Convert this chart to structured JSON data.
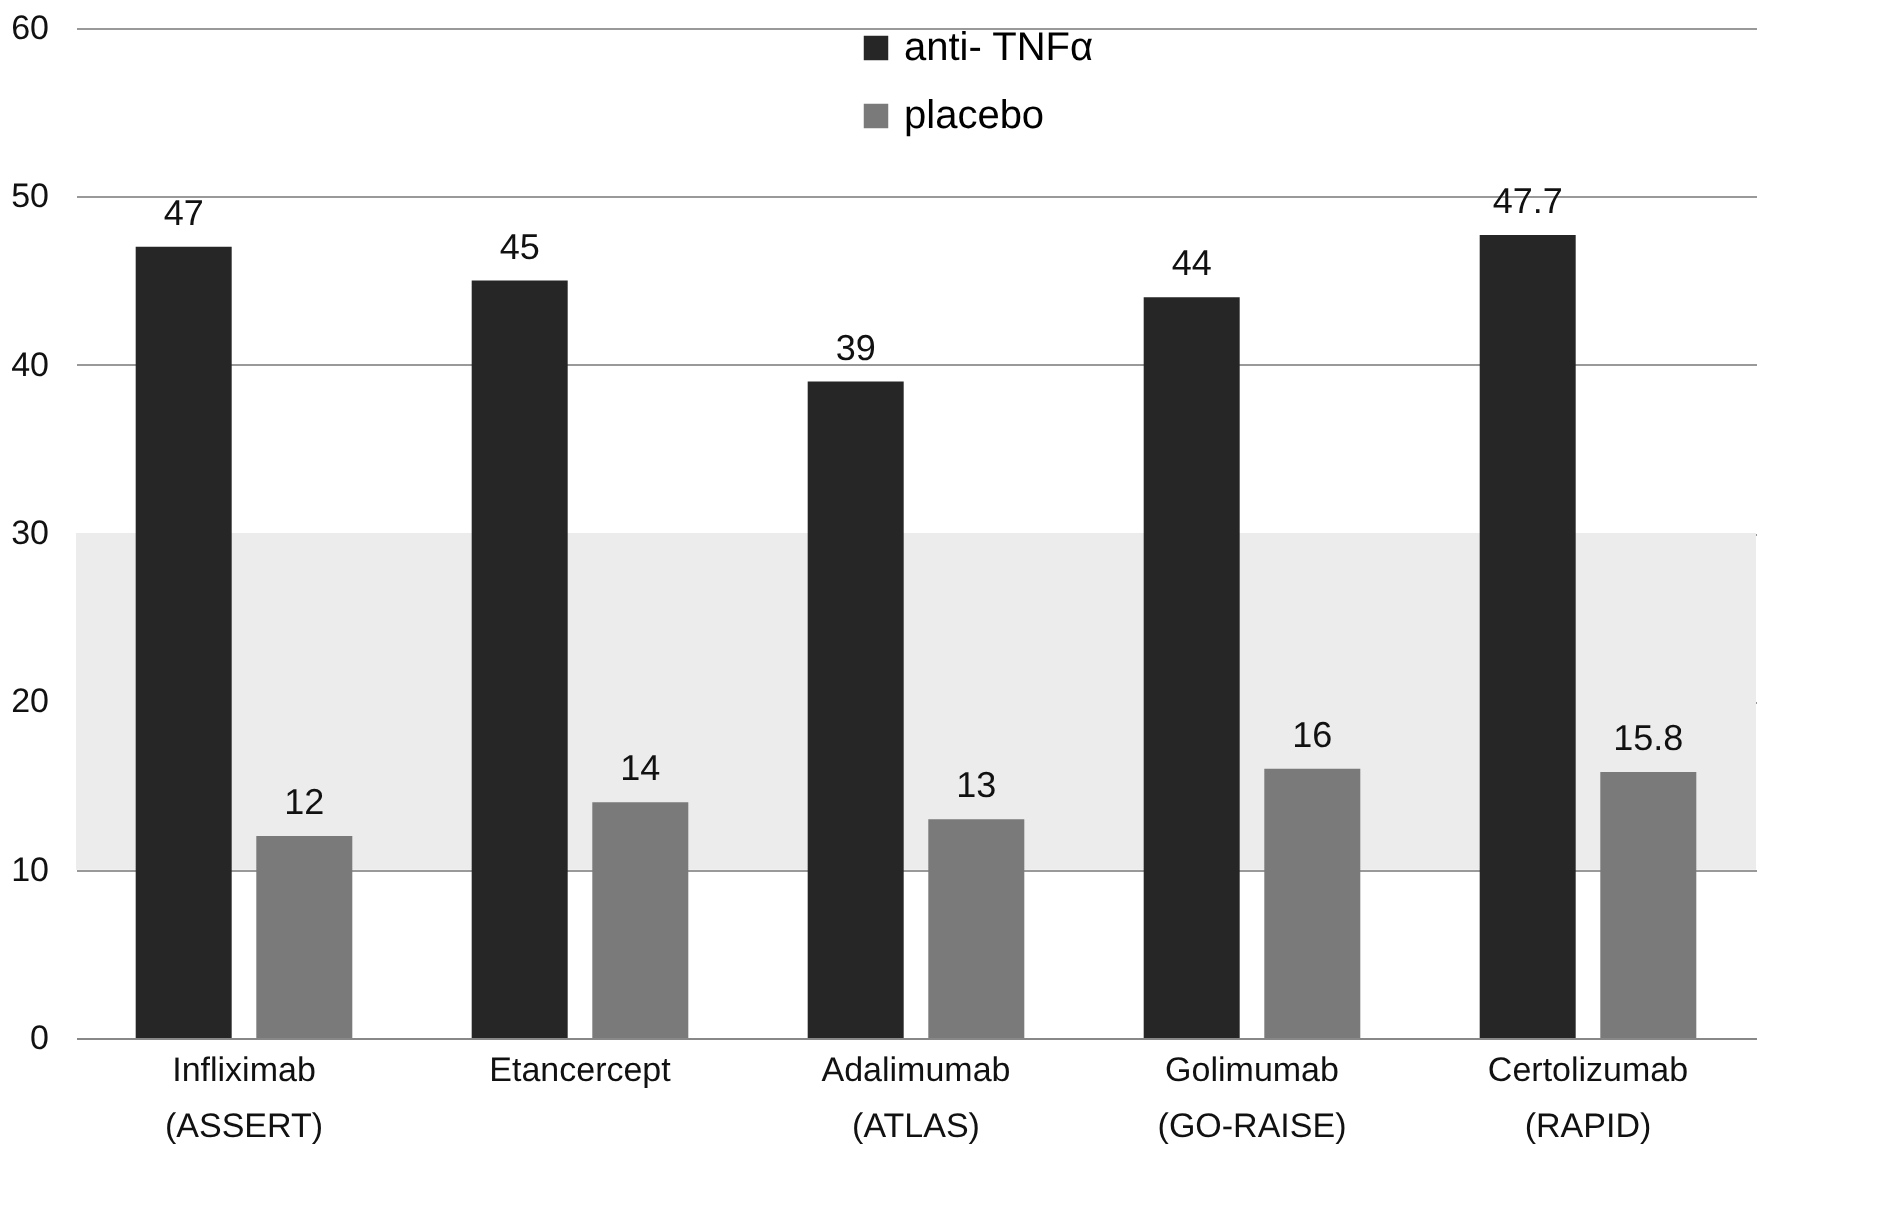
{
  "chart_data": {
    "type": "bar",
    "categories": [
      "Infliximab\n(ASSERT)",
      "Etancercept",
      "Adalimumab\n(ATLAS)",
      "Golimumab\n(GO-RAISE)",
      "Certolizumab\n(RAPID)"
    ],
    "series": [
      {
        "name": "anti- TNFα",
        "color": "#262626",
        "values": [
          47,
          45,
          39,
          44,
          47.7
        ]
      },
      {
        "name": "placebo",
        "color": "#7a7a7a",
        "values": [
          12,
          14,
          13,
          16,
          15.8
        ]
      }
    ],
    "ylim": [
      0,
      60
    ],
    "yticks": [
      0,
      10,
      20,
      30,
      40,
      50,
      60
    ],
    "grid": "y",
    "legend": "top",
    "data_labels": true,
    "bands": [
      {
        "axis": "y",
        "from": 10,
        "to": 30,
        "color": "#ececec"
      }
    ]
  }
}
